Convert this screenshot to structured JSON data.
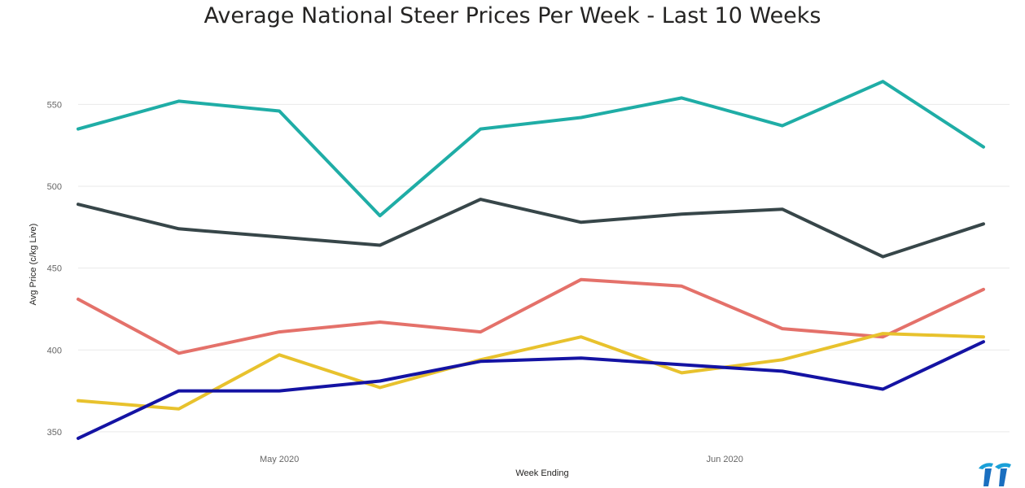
{
  "chart_data": {
    "type": "line",
    "title": "Average National Steer Prices Per Week - Last 10 Weeks",
    "xlabel": "Week Ending",
    "ylabel": "Avg Price (c/kg Live)",
    "ylim": [
      339,
      584
    ],
    "yticks": [
      350,
      400,
      450,
      500,
      550
    ],
    "x": [
      "2020-04-17",
      "2020-04-24",
      "2020-05-01",
      "2020-05-08",
      "2020-05-15",
      "2020-05-22",
      "2020-05-29",
      "2020-06-05",
      "2020-06-12",
      "2020-06-19"
    ],
    "xlim": [
      "2020-04-17",
      "2020-06-19"
    ],
    "xticks": [
      {
        "date": "2020-05-01",
        "label": "May 2020"
      },
      {
        "date": "2020-06-01",
        "label": "Jun 2020"
      }
    ],
    "grid": true,
    "series": [
      {
        "color": "#1fada6",
        "values": [
          535,
          552,
          546,
          482,
          535,
          542,
          554,
          537,
          564,
          524
        ]
      },
      {
        "color": "#374649",
        "values": [
          489,
          474,
          469,
          464,
          492,
          478,
          483,
          486,
          457,
          477
        ]
      },
      {
        "color": "#e4716a",
        "values": [
          431,
          398,
          411,
          417,
          411,
          443,
          439,
          413,
          408,
          437
        ]
      },
      {
        "color": "#e8c22d",
        "values": [
          369,
          364,
          397,
          377,
          394,
          408,
          386,
          394,
          410,
          408
        ]
      },
      {
        "color": "#1413a3",
        "values": [
          346,
          375,
          375,
          381,
          393,
          395,
          391,
          387,
          376,
          405
        ]
      }
    ]
  }
}
